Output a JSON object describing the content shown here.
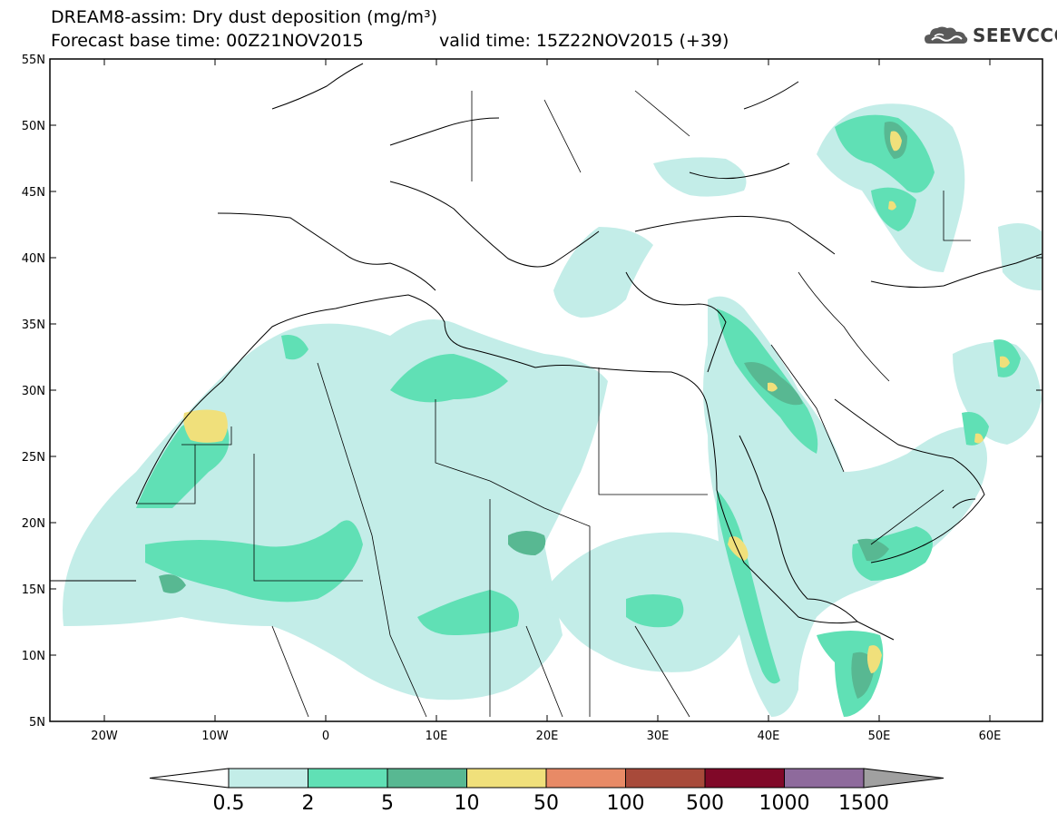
{
  "header": {
    "title": "DREAM8-assim: Dry dust deposition (mg/m³)",
    "base_time": "Forecast base time: 00Z21NOV2015",
    "valid_time": "valid time: 15Z22NOV2015 (+39)"
  },
  "logo": {
    "text": "SEEVCCC",
    "icon": "cloud-logo-icon"
  },
  "map": {
    "lat_labels": [
      "55N",
      "50N",
      "45N",
      "40N",
      "35N",
      "30N",
      "25N",
      "20N",
      "15N",
      "10N",
      "5N"
    ],
    "lon_labels": [
      "20W",
      "10W",
      "0",
      "10E",
      "20E",
      "30E",
      "40E",
      "50E",
      "60E"
    ],
    "colors": {
      "c1": "#c3ede8",
      "c2": "#60e0b5",
      "c3": "#58b892",
      "c4": "#f0e07b",
      "land_border": "#000000"
    }
  },
  "legend": {
    "labels": [
      "0.5",
      "2",
      "5",
      "10",
      "50",
      "100",
      "500",
      "1000",
      "1500"
    ],
    "colors": [
      "#c3ede8",
      "#60e0b5",
      "#58b892",
      "#f0e07b",
      "#e88a66",
      "#a84a3a",
      "#800828",
      "#8e6a9c"
    ],
    "under_color": "#ffffff",
    "over_color": "#a0a0a0"
  }
}
